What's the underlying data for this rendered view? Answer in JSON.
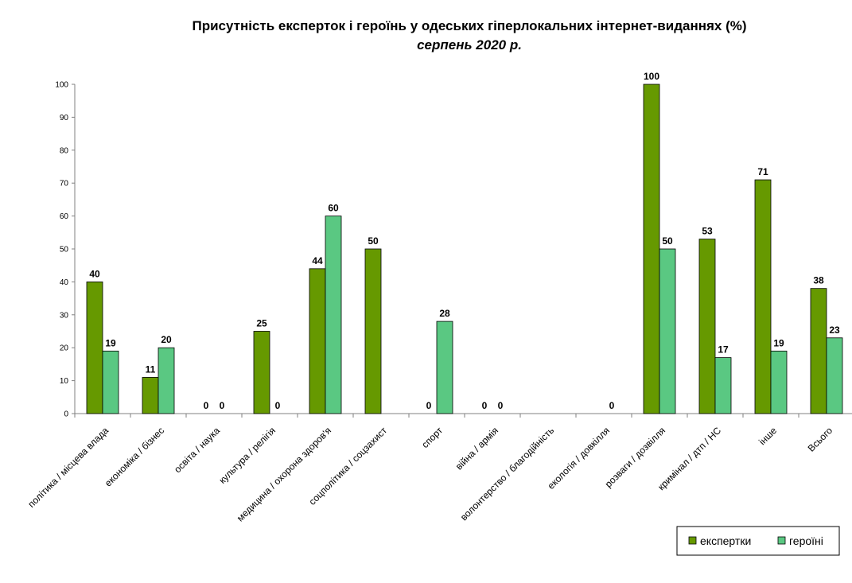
{
  "chart_data": {
    "type": "bar",
    "title": "Присутність eксперток і героїнь у одеських гіперлокальних інтернет-виданнях (%)",
    "subtitle": "серпень 2020 р.",
    "xlabel": "",
    "ylabel": "",
    "ylim": [
      0,
      100
    ],
    "yticks": [
      0,
      10,
      20,
      30,
      40,
      50,
      60,
      70,
      80,
      90,
      100
    ],
    "grid": false,
    "legend_position": "bottom-right",
    "categories": [
      "політика / місцева влада",
      "економіка / бізнес",
      "освіта / наука",
      "культура / релігія",
      "медицина / охорона здоров'я",
      "соцполітика / соцзахист",
      "спорт",
      "війна / армія",
      "волонтерство / благодійність",
      "екологія / довкілля",
      "розваги / дозвілля",
      "кримінал / дтп / НС",
      "інше",
      "Всього"
    ],
    "series": [
      {
        "name": "експертки",
        "color": "#669900",
        "values": [
          40,
          11,
          0,
          25,
          44,
          50,
          0,
          0,
          null,
          null,
          100,
          53,
          71,
          38
        ],
        "labels": [
          "40",
          "11",
          "0",
          "25",
          "44",
          "50",
          "0",
          "0",
          "",
          "",
          "100",
          "53",
          "71",
          "38"
        ]
      },
      {
        "name": "героїні",
        "color": "#5ac882",
        "values": [
          19,
          20,
          0,
          0,
          60,
          null,
          28,
          0,
          null,
          0,
          50,
          17,
          19,
          23
        ],
        "labels": [
          "19",
          "20",
          "0",
          "0",
          "60",
          "",
          "28",
          "0",
          "",
          "0",
          "50",
          "17",
          "19",
          "23"
        ]
      }
    ]
  }
}
